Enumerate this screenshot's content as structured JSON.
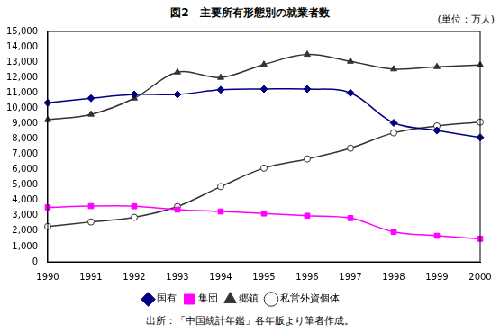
{
  "chart_data": {
    "type": "line",
    "title": "図2　主要所有形態別の就業者数",
    "y_label": "(単位：万人)",
    "annotations": [
      "出所：「中国統計年鑑」各年版より筆者作成。"
    ],
    "categories": [
      "1990",
      "1991",
      "1992",
      "1993",
      "1994",
      "1995",
      "1996",
      "1997",
      "1998",
      "1999",
      "2000"
    ],
    "series": [
      {
        "name": "国有",
        "color": "#000080",
        "marker": "diamond",
        "values": [
          10350,
          10650,
          10900,
          10900,
          11200,
          11250,
          11250,
          11000,
          9050,
          8550,
          8100
        ]
      },
      {
        "name": "集団",
        "color": "#ff00ff",
        "marker": "square",
        "values": [
          3550,
          3630,
          3620,
          3400,
          3280,
          3150,
          3000,
          2850,
          1950,
          1700,
          1500
        ]
      },
      {
        "name": "郷鎮",
        "color": "#333333",
        "marker": "triangle",
        "values": [
          9250,
          9600,
          10650,
          12350,
          12000,
          12850,
          13500,
          13050,
          12550,
          12700,
          12820
        ]
      },
      {
        "name": "私営外資個体",
        "color": "#333333",
        "marker": "circle",
        "values": [
          2300,
          2600,
          2900,
          3600,
          4900,
          6100,
          6700,
          7400,
          8400,
          8850,
          9100
        ]
      }
    ],
    "ylim": [
      0,
      15000
    ],
    "yticks": [
      0,
      {
        "value": 1000,
        "label": "1,000"
      },
      {
        "value": 2000,
        "label": "2,000"
      },
      {
        "value": 3000,
        "label": "3,000"
      },
      {
        "value": 4000,
        "label": "4,000"
      },
      {
        "value": 5000,
        "label": "5,000"
      },
      {
        "value": 6000,
        "label": "6,000"
      },
      {
        "value": 7000,
        "label": "7,000"
      },
      {
        "value": 8000,
        "label": "8,000"
      },
      {
        "value": 9000,
        "label": "9,000"
      },
      {
        "value": 10000,
        "label": "10,000"
      },
      {
        "value": 11000,
        "label": "11,000"
      },
      {
        "value": 12000,
        "label": "12,000"
      },
      {
        "value": 13000,
        "label": "13,000"
      },
      {
        "value": 14000,
        "label": "14,000"
      },
      {
        "value": 15000,
        "label": "15,000"
      }
    ],
    "grid": false,
    "legend": "bottom"
  }
}
